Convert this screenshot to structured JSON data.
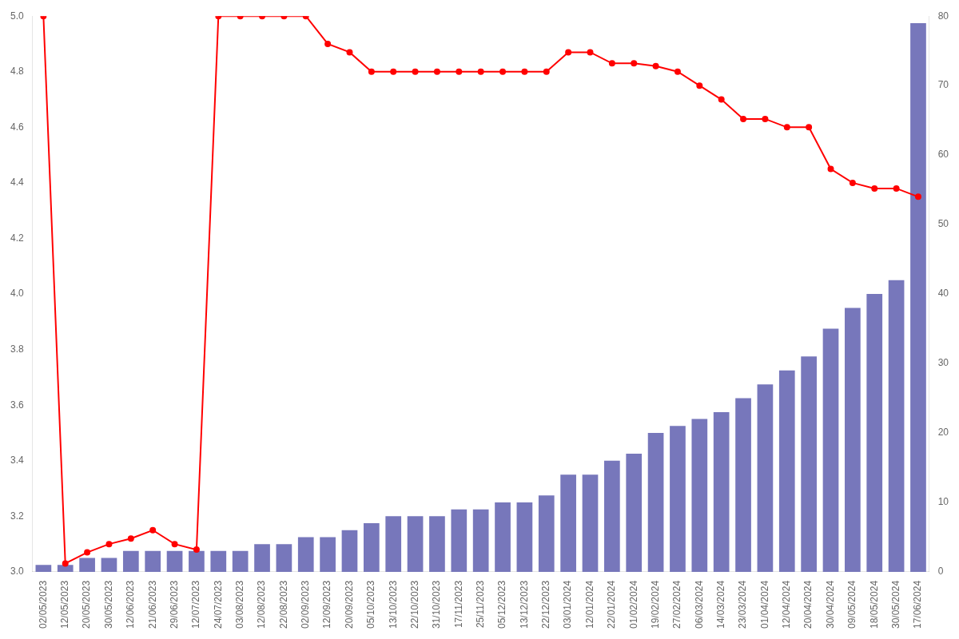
{
  "chart_data": {
    "type": "bar",
    "categories": [
      "02/05/2023",
      "12/05/2023",
      "20/05/2023",
      "30/05/2023",
      "12/06/2023",
      "21/06/2023",
      "29/06/2023",
      "12/07/2023",
      "24/07/2023",
      "03/08/2023",
      "12/08/2023",
      "22/08/2023",
      "02/09/2023",
      "12/09/2023",
      "20/09/2023",
      "05/10/2023",
      "13/10/2023",
      "22/10/2023",
      "31/10/2023",
      "17/11/2023",
      "25/11/2023",
      "05/12/2023",
      "13/12/2023",
      "22/12/2023",
      "03/01/2024",
      "12/01/2024",
      "22/01/2024",
      "01/02/2024",
      "19/02/2024",
      "27/02/2024",
      "06/03/2024",
      "14/03/2024",
      "23/03/2024",
      "01/04/2024",
      "12/04/2024",
      "20/04/2024",
      "30/04/2024",
      "09/05/2024",
      "18/05/2024",
      "30/05/2024",
      "17/06/2024"
    ],
    "series": [
      {
        "type": "line",
        "color": "#ff0000",
        "marker": "circle",
        "values": [
          5.0,
          3.03,
          3.07,
          3.1,
          3.12,
          3.15,
          3.1,
          3.08,
          5.0,
          5.0,
          5.0,
          5.0,
          5.0,
          4.9,
          4.87,
          4.8,
          4.8,
          4.8,
          4.8,
          4.8,
          4.8,
          4.8,
          4.8,
          4.8,
          4.87,
          4.87,
          4.83,
          4.83,
          4.82,
          4.8,
          4.75,
          4.7,
          4.63,
          4.63,
          4.6,
          4.6,
          4.45,
          4.4,
          4.38,
          4.38,
          4.35
        ]
      },
      {
        "type": "bar",
        "color": "#7777bb",
        "axis": "y2",
        "values": [
          1,
          1,
          2,
          2,
          3,
          3,
          3,
          3,
          3,
          3,
          4,
          4,
          5,
          5,
          6,
          7,
          8,
          8,
          8,
          9,
          9,
          10,
          10,
          11,
          14,
          14,
          16,
          17,
          20,
          21,
          22,
          23,
          25,
          27,
          29,
          31,
          35,
          38,
          40,
          42,
          79
        ]
      }
    ],
    "ylim": [
      3.0,
      5.0
    ],
    "yticks": [
      {
        "value": 3.0,
        "label": "3.0"
      },
      3.2,
      3.4,
      3.6,
      3.8,
      {
        "value": 4.0,
        "label": "4.0"
      },
      4.2,
      4.4,
      4.6,
      4.8,
      {
        "value": 5.0,
        "label": "5.0"
      }
    ],
    "y2lim": [
      0,
      80
    ],
    "y2ticks": [
      0,
      10,
      20,
      30,
      40,
      50,
      60,
      70,
      80
    ],
    "grid": false
  }
}
